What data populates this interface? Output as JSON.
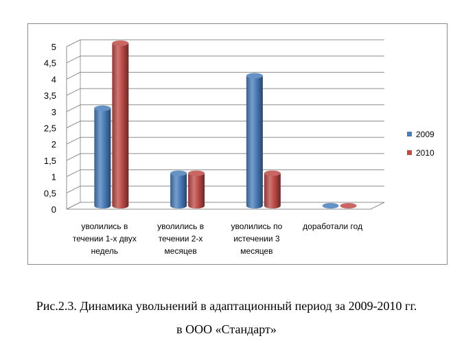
{
  "caption": {
    "line1": "Рис.2.3. Динамика увольнений в адаптационный период за 2009-2010 гг.",
    "line2": "в ООО «Стандарт»"
  },
  "chart_data": {
    "type": "bar",
    "title": "",
    "xlabel": "",
    "ylabel": "",
    "ylim": [
      0,
      5
    ],
    "ytick_labels": [
      "0",
      "0,5",
      "1",
      "1,5",
      "2",
      "2,5",
      "3",
      "3,5",
      "4",
      "4,5",
      "5"
    ],
    "grid": true,
    "legend_position": "right",
    "categories": [
      [
        "уволились в",
        "течении 1-х двух",
        "недель"
      ],
      [
        "уволились в",
        "течении 2-х",
        "месяцев"
      ],
      [
        "уволились по",
        "истечении 3",
        "месяцев"
      ],
      [
        "доработали год"
      ]
    ],
    "series": [
      {
        "name": "2009",
        "color": "#4a7ebb",
        "values": [
          3,
          1,
          4,
          0
        ]
      },
      {
        "name": "2010",
        "color": "#be4b48",
        "values": [
          5,
          1,
          1,
          0
        ]
      }
    ]
  }
}
